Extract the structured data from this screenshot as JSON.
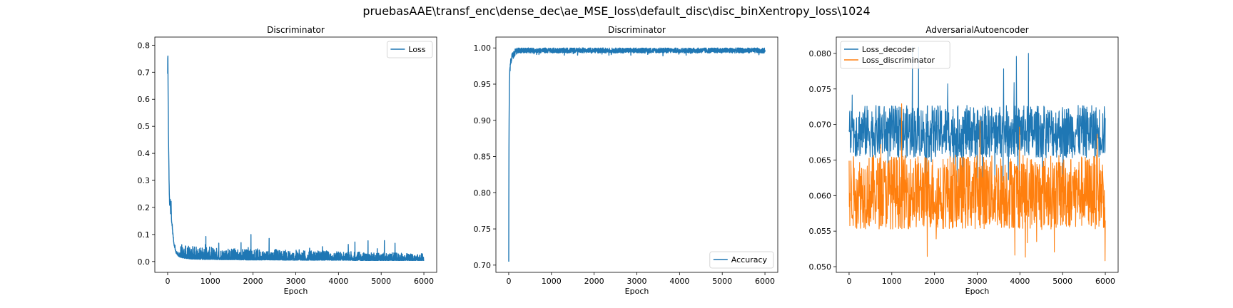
{
  "figure": {
    "title": "pruebasAAE\\transf_enc\\dense_dec\\ae_MSE_loss\\default_disc\\disc_binXentropy_loss\\1024"
  },
  "chart_data": [
    {
      "type": "line",
      "title": "Discriminator",
      "xlabel": "Epoch",
      "ylabel": "",
      "xlim": [
        -300,
        6300
      ],
      "ylim": [
        -0.04,
        0.83
      ],
      "xticks": [
        0,
        1000,
        2000,
        3000,
        4000,
        5000,
        6000
      ],
      "yticks": [
        0.0,
        0.1,
        0.2,
        0.3,
        0.4,
        0.5,
        0.6,
        0.7,
        0.8
      ],
      "tick_decimals": 1,
      "legend_position": "upper right",
      "grid": false,
      "series": [
        {
          "name": "Loss",
          "color": "#1f77b4",
          "x": [
            0,
            5,
            10,
            20,
            30,
            40,
            50,
            60,
            70,
            80,
            90,
            100,
            120,
            150,
            200,
            250,
            300,
            400,
            500,
            600,
            700,
            800,
            900,
            1000,
            1100,
            1200,
            1300,
            1400,
            1500,
            1600,
            1700,
            1800,
            1900,
            2000,
            2100,
            2200,
            2400,
            2600,
            2800,
            3000,
            3200,
            3400,
            3600,
            3800,
            4000,
            4200,
            4400,
            4600,
            4800,
            5000,
            5200,
            5400,
            5600,
            5800,
            6000
          ],
          "values": [
            0.69,
            0.79,
            0.62,
            0.45,
            0.33,
            0.24,
            0.2,
            0.23,
            0.17,
            0.22,
            0.15,
            0.14,
            0.1,
            0.06,
            0.03,
            0.02,
            0.015,
            0.012,
            0.01,
            0.009,
            0.009,
            0.008,
            0.008,
            0.008,
            0.008,
            0.007,
            0.007,
            0.007,
            0.007,
            0.007,
            0.006,
            0.006,
            0.006,
            0.006,
            0.006,
            0.006,
            0.006,
            0.006,
            0.005,
            0.005,
            0.005,
            0.005,
            0.005,
            0.005,
            0.005,
            0.005,
            0.004,
            0.004,
            0.004,
            0.004,
            0.004,
            0.004,
            0.004,
            0.004,
            0.004
          ],
          "noise_amplitude_start": 0.05,
          "noise_amplitude_end": 0.025,
          "spike_max": 0.1
        }
      ]
    },
    {
      "type": "line",
      "title": "Discriminator",
      "xlabel": "Epoch",
      "ylabel": "",
      "xlim": [
        -300,
        6300
      ],
      "ylim": [
        0.69,
        1.015
      ],
      "xticks": [
        0,
        1000,
        2000,
        3000,
        4000,
        5000,
        6000
      ],
      "yticks": [
        0.7,
        0.75,
        0.8,
        0.85,
        0.9,
        0.95,
        1.0
      ],
      "tick_decimals": 2,
      "legend_position": "lower right",
      "grid": false,
      "series": [
        {
          "name": "Accuracy",
          "color": "#1f77b4",
          "x": [
            0,
            5,
            10,
            15,
            20,
            30,
            40,
            60,
            80,
            100,
            150,
            200,
            300,
            500,
            1000,
            2000,
            3000,
            4000,
            5000,
            6000
          ],
          "values": [
            0.705,
            0.86,
            0.92,
            0.95,
            0.965,
            0.975,
            0.985,
            0.99,
            0.993,
            0.995,
            0.996,
            0.997,
            0.997,
            0.998,
            0.998,
            0.998,
            0.999,
            0.999,
            0.999,
            0.999
          ],
          "band_low": 0.993,
          "band_high": 1.0,
          "dip_min": 0.989
        }
      ]
    },
    {
      "type": "line",
      "title": "AdversarialAutoencoder",
      "xlabel": "Epoch",
      "ylabel": "",
      "xlim": [
        -300,
        6300
      ],
      "ylim": [
        0.0492,
        0.0823
      ],
      "xticks": [
        0,
        1000,
        2000,
        3000,
        4000,
        5000,
        6000
      ],
      "yticks": [
        0.05,
        0.055,
        0.06,
        0.065,
        0.07,
        0.075,
        0.08
      ],
      "tick_decimals": 3,
      "legend_position": "upper left",
      "grid": false,
      "series": [
        {
          "name": "Loss_decoder",
          "color": "#1f77b4",
          "mean": 0.069,
          "noise_amplitude": 0.0037,
          "spike_max": 0.0812,
          "spike_min": 0.0595
        },
        {
          "name": "Loss_discriminator",
          "color": "#ff7f0e",
          "mean": 0.0605,
          "noise_amplitude": 0.0052,
          "spike_max": 0.073,
          "spike_min": 0.0508
        }
      ]
    }
  ]
}
